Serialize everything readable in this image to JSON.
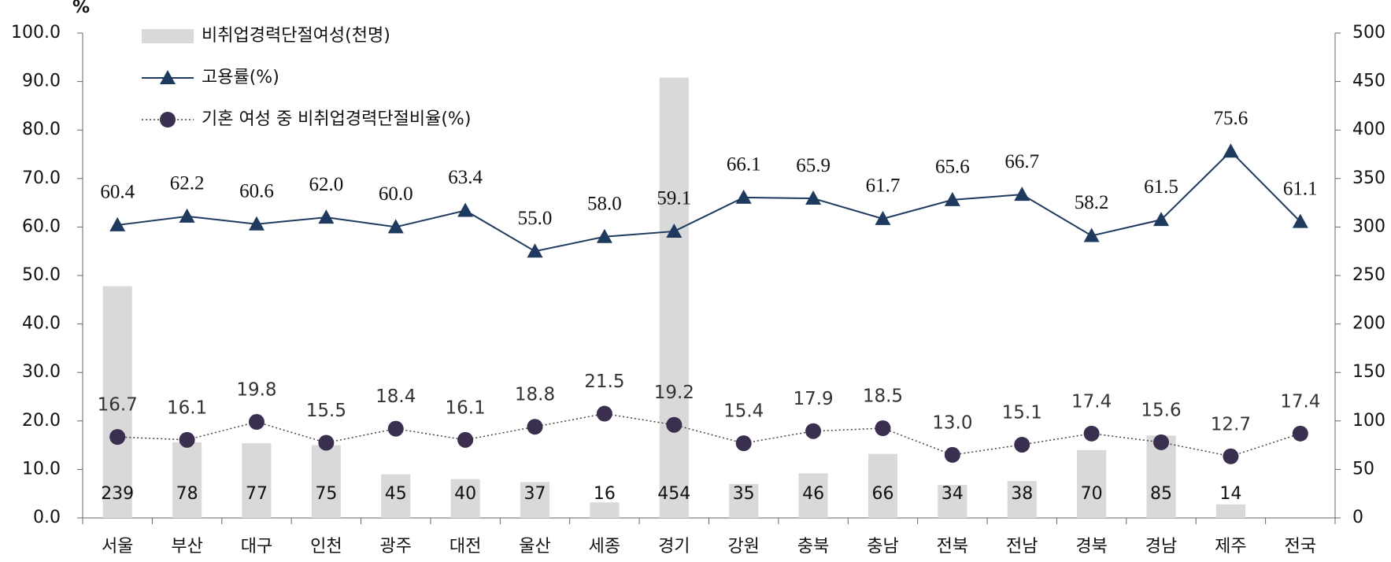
{
  "chart_data": {
    "type": "combo",
    "y_unit": "%",
    "categories": [
      "서울",
      "부산",
      "대구",
      "인천",
      "광주",
      "대전",
      "울산",
      "세종",
      "경기",
      "강원",
      "충북",
      "충남",
      "전북",
      "전남",
      "경북",
      "경남",
      "제주",
      "전국"
    ],
    "ylim": [
      0,
      100
    ],
    "yticks": [
      {
        "value": 0,
        "label": "0.0"
      },
      {
        "value": 10,
        "label": "10.0"
      },
      {
        "value": 20,
        "label": "20.0"
      },
      {
        "value": 30,
        "label": "30.0"
      },
      {
        "value": 40,
        "label": "40.0"
      },
      {
        "value": 50,
        "label": "50.0"
      },
      {
        "value": 60,
        "label": "60.0"
      },
      {
        "value": 70,
        "label": "70.0"
      },
      {
        "value": 80,
        "label": "80.0"
      },
      {
        "value": 90,
        "label": "90.0"
      },
      {
        "value": 100,
        "label": "100.0"
      }
    ],
    "y2lim": [
      0,
      500
    ],
    "y2ticks": [
      0,
      50,
      100,
      150,
      200,
      250,
      300,
      350,
      400,
      450,
      500
    ],
    "series": [
      {
        "name": "비취업경력단절여성(천명)",
        "type": "bar",
        "axis": "y2",
        "color": "#d9d9d9",
        "values": [
          239,
          78,
          77,
          75,
          45,
          40,
          37,
          16,
          454,
          35,
          46,
          66,
          34,
          38,
          70,
          85,
          14,
          null
        ]
      },
      {
        "name": "고용률(%)",
        "type": "line",
        "color": "#1f3a5f",
        "marker": "triangle",
        "linestyle": "solid",
        "values": [
          60.4,
          62.2,
          60.6,
          62.0,
          60.0,
          63.4,
          55.0,
          58.0,
          59.1,
          66.1,
          65.9,
          61.7,
          65.6,
          66.7,
          58.2,
          61.5,
          75.6,
          61.1
        ],
        "value_labels": [
          "60.4",
          "62.2",
          "60.6",
          "62.0",
          "60.0",
          "63.4",
          "55.0",
          "58.0",
          "59.1",
          "66.1",
          "65.9",
          "61.7",
          "65.6",
          "66.7",
          "58.2",
          "61.5",
          "75.6",
          "61.1"
        ]
      },
      {
        "name": "기혼 여성 중 비취업경력단절비율(%)",
        "type": "line",
        "color": "#3b2f4f",
        "marker": "circle",
        "linestyle": "dotted",
        "values": [
          16.7,
          16.1,
          19.8,
          15.5,
          18.4,
          16.1,
          18.8,
          21.5,
          19.2,
          15.4,
          17.9,
          18.5,
          13.0,
          15.1,
          17.4,
          15.6,
          12.7,
          17.4
        ],
        "value_labels": [
          "16.7",
          "16.1",
          "19.8",
          "15.5",
          "18.4",
          "16.1",
          "18.8",
          "21.5",
          "19.2",
          "15.4",
          "17.9",
          "18.5",
          "13.0",
          "15.1",
          "17.4",
          "15.6",
          "12.7",
          "17.4"
        ]
      }
    ]
  }
}
